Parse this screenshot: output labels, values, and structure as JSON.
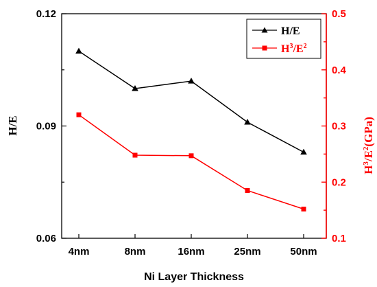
{
  "chart_data": {
    "type": "line",
    "categories": [
      "4nm",
      "8nm",
      "16nm",
      "25nm",
      "50nm"
    ],
    "xlabel": "Ni Layer Thickness",
    "ylabel_left": "H/E",
    "ylabel_right_parts": {
      "h": "H",
      "h_sup": "3",
      "mid": "/E",
      "e_sup": "2",
      "unit": "(GPa)"
    },
    "ylim_left": [
      0.06,
      0.12
    ],
    "yticks_left": [
      "0.06",
      "0.09",
      "0.12"
    ],
    "ylim_right": [
      0.1,
      0.5
    ],
    "yticks_right": [
      "0.1",
      "0.2",
      "0.3",
      "0.4",
      "0.5"
    ],
    "grid": false,
    "legend_position": "top-right",
    "series": [
      {
        "name": "H/E",
        "axis": "left",
        "color": "#000000",
        "marker": "triangle",
        "values": [
          0.11,
          0.1,
          0.102,
          0.091,
          0.083
        ]
      },
      {
        "name_parts": {
          "h": "H",
          "h_sup": "3",
          "mid": "/E",
          "e_sup": "2"
        },
        "axis": "right",
        "color": "#ff0000",
        "marker": "square",
        "values": [
          0.32,
          0.248,
          0.247,
          0.185,
          0.152
        ]
      }
    ]
  }
}
